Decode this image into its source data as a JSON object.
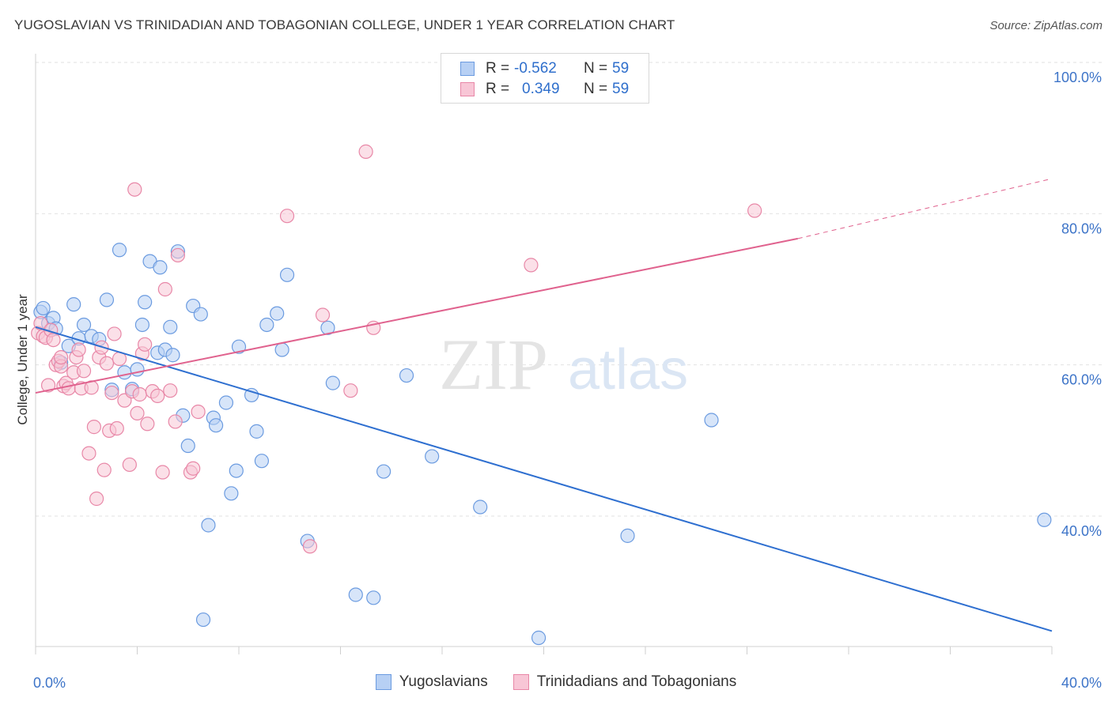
{
  "header": {
    "title": "YUGOSLAVIAN VS TRINIDADIAN AND TOBAGONIAN COLLEGE, UNDER 1 YEAR CORRELATION CHART",
    "source": "Source: ZipAtlas.com"
  },
  "watermark": {
    "part1": "ZIP",
    "part2": "atlas"
  },
  "legend_top": [
    {
      "r_label": "R = ",
      "r_value": "-0.562",
      "n_label": "N = ",
      "n_value": "59",
      "color": "#6b9be0",
      "fill": "#b7d0f4"
    },
    {
      "r_label": "R = ",
      "r_value": "0.349",
      "n_label": "N = ",
      "n_value": "59",
      "color": "#e887a7",
      "fill": "#f8c6d6"
    }
  ],
  "chart_data": {
    "type": "scatter",
    "title": "YUGOSLAVIAN VS TRINIDADIAN AND TOBAGONIAN COLLEGE, UNDER 1 YEAR CORRELATION CHART",
    "xlabel": "",
    "ylabel": "College, Under 1 year",
    "xlim": [
      0,
      40
    ],
    "ylim": [
      22,
      103
    ],
    "x_tick_labels": [
      {
        "value": 0,
        "label": "0.0%"
      },
      {
        "value": 40,
        "label": "40.0%"
      }
    ],
    "y_tick_labels": [
      {
        "value": 100,
        "label": "100.0%"
      },
      {
        "value": 80,
        "label": "80.0%"
      },
      {
        "value": 60,
        "label": "60.0%"
      },
      {
        "value": 40,
        "label": "40.0%"
      }
    ],
    "grid": true,
    "legend_position": "bottom-center",
    "series": [
      {
        "name": "Yugoslavians",
        "color": "#6b9be0",
        "fill": "#b7d0f4",
        "line_color": "#2e6fd0",
        "trend": {
          "x0": 0.0,
          "y0": 65.0,
          "x1": 40.0,
          "y1": 24.8
        },
        "points": [
          [
            0.2,
            67.0
          ],
          [
            0.3,
            67.5
          ],
          [
            0.5,
            65.5
          ],
          [
            0.7,
            66.2
          ],
          [
            0.8,
            64.8
          ],
          [
            1.0,
            60.3
          ],
          [
            1.3,
            62.5
          ],
          [
            1.5,
            68.0
          ],
          [
            1.7,
            63.5
          ],
          [
            1.9,
            65.3
          ],
          [
            2.2,
            63.8
          ],
          [
            2.5,
            63.4
          ],
          [
            2.8,
            68.6
          ],
          [
            3.0,
            56.7
          ],
          [
            3.3,
            75.2
          ],
          [
            3.5,
            59.0
          ],
          [
            3.8,
            56.8
          ],
          [
            4.0,
            59.4
          ],
          [
            4.2,
            65.3
          ],
          [
            4.3,
            68.3
          ],
          [
            4.5,
            73.7
          ],
          [
            4.8,
            61.6
          ],
          [
            4.9,
            72.9
          ],
          [
            5.1,
            62.0
          ],
          [
            5.3,
            65.0
          ],
          [
            5.4,
            61.3
          ],
          [
            5.6,
            75.0
          ],
          [
            5.8,
            53.3
          ],
          [
            6.0,
            49.3
          ],
          [
            6.2,
            67.8
          ],
          [
            6.5,
            66.7
          ],
          [
            6.6,
            26.3
          ],
          [
            6.8,
            38.8
          ],
          [
            7.0,
            53.0
          ],
          [
            7.1,
            52.0
          ],
          [
            7.5,
            55.0
          ],
          [
            7.7,
            43.0
          ],
          [
            7.9,
            46.0
          ],
          [
            8.0,
            62.4
          ],
          [
            8.5,
            56.0
          ],
          [
            8.7,
            51.2
          ],
          [
            8.9,
            47.3
          ],
          [
            9.1,
            65.3
          ],
          [
            9.5,
            66.8
          ],
          [
            9.7,
            62.0
          ],
          [
            9.9,
            71.9
          ],
          [
            10.7,
            36.7
          ],
          [
            11.5,
            64.9
          ],
          [
            11.7,
            57.6
          ],
          [
            12.6,
            29.6
          ],
          [
            13.3,
            29.2
          ],
          [
            13.7,
            45.9
          ],
          [
            14.6,
            58.6
          ],
          [
            15.6,
            47.9
          ],
          [
            17.5,
            41.2
          ],
          [
            19.8,
            23.9
          ],
          [
            23.3,
            37.4
          ],
          [
            26.6,
            52.7
          ],
          [
            39.7,
            39.5
          ]
        ]
      },
      {
        "name": "Trinidadians and Tobagonians",
        "color": "#e887a7",
        "fill": "#f8c6d6",
        "line_color": "#e0628e",
        "trend": {
          "x0": 0.0,
          "y0": 56.3,
          "x1": 30.0,
          "y1": 76.7
        },
        "trend_extension": {
          "x0": 30.0,
          "y0": 76.7,
          "x1": 40.0,
          "y1": 84.5
        },
        "points": [
          [
            0.1,
            64.2
          ],
          [
            0.2,
            65.5
          ],
          [
            0.3,
            63.8
          ],
          [
            0.4,
            63.6
          ],
          [
            0.5,
            57.3
          ],
          [
            0.6,
            64.6
          ],
          [
            0.7,
            63.3
          ],
          [
            0.8,
            60.0
          ],
          [
            0.9,
            60.5
          ],
          [
            1.0,
            59.8
          ],
          [
            1.1,
            57.2
          ],
          [
            1.2,
            57.6
          ],
          [
            1.3,
            56.9
          ],
          [
            1.5,
            59.0
          ],
          [
            1.6,
            61.0
          ],
          [
            1.7,
            62.0
          ],
          [
            1.8,
            56.9
          ],
          [
            1.9,
            59.2
          ],
          [
            2.1,
            48.3
          ],
          [
            2.2,
            57.0
          ],
          [
            2.3,
            51.8
          ],
          [
            2.5,
            61.0
          ],
          [
            2.6,
            62.3
          ],
          [
            2.7,
            46.1
          ],
          [
            2.8,
            60.2
          ],
          [
            2.9,
            51.3
          ],
          [
            3.0,
            56.3
          ],
          [
            3.1,
            64.1
          ],
          [
            3.2,
            51.6
          ],
          [
            3.3,
            60.8
          ],
          [
            3.5,
            55.3
          ],
          [
            3.7,
            46.8
          ],
          [
            3.8,
            56.5
          ],
          [
            3.9,
            83.2
          ],
          [
            4.0,
            53.6
          ],
          [
            4.1,
            56.1
          ],
          [
            4.2,
            61.5
          ],
          [
            4.3,
            62.7
          ],
          [
            4.4,
            52.2
          ],
          [
            4.6,
            56.5
          ],
          [
            4.8,
            55.9
          ],
          [
            5.0,
            45.8
          ],
          [
            5.1,
            70.0
          ],
          [
            5.3,
            56.6
          ],
          [
            5.5,
            52.5
          ],
          [
            5.6,
            74.5
          ],
          [
            6.1,
            45.8
          ],
          [
            6.2,
            46.3
          ],
          [
            6.4,
            53.8
          ],
          [
            2.4,
            42.3
          ],
          [
            9.9,
            79.7
          ],
          [
            10.8,
            36.0
          ],
          [
            11.3,
            66.6
          ],
          [
            12.4,
            56.6
          ],
          [
            13.0,
            88.2
          ],
          [
            13.3,
            64.9
          ],
          [
            19.5,
            73.2
          ],
          [
            28.3,
            80.4
          ],
          [
            1.0,
            61.0
          ]
        ]
      }
    ]
  }
}
